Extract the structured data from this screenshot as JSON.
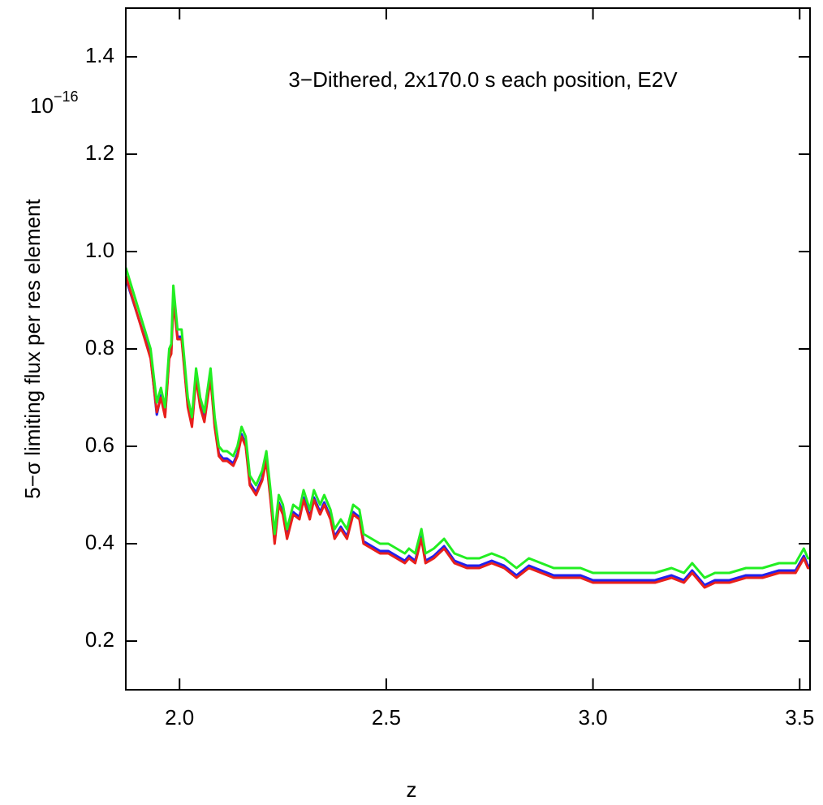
{
  "chart_data": {
    "type": "line",
    "annotation": "3−Dithered, 2x170.0 s each position, E2V",
    "x_label": "z",
    "y_label": "5−σ limiting flux per res element",
    "y_scale_base": "10",
    "y_scale_exponent": "−16",
    "xlim": [
      1.87,
      3.525
    ],
    "ylim": [
      0.1,
      1.5
    ],
    "xticks": [
      {
        "value": 2,
        "label": "2.0"
      },
      2.5,
      {
        "value": 3,
        "label": "3.0"
      },
      3.5
    ],
    "yticks": [
      0.2,
      0.4,
      0.6,
      0.8,
      {
        "value": 1,
        "label": "1.0"
      },
      1.2,
      1.4
    ],
    "grid": false,
    "x": [
      1.87,
      1.93,
      1.945,
      1.955,
      1.965,
      1.975,
      1.98,
      1.985,
      1.995,
      2.005,
      2.02,
      2.03,
      2.04,
      2.05,
      2.06,
      2.075,
      2.085,
      2.095,
      2.105,
      2.115,
      2.13,
      2.14,
      2.15,
      2.16,
      2.17,
      2.185,
      2.2,
      2.21,
      2.22,
      2.23,
      2.24,
      2.25,
      2.26,
      2.275,
      2.29,
      2.3,
      2.315,
      2.325,
      2.34,
      2.35,
      2.365,
      2.375,
      2.39,
      2.405,
      2.42,
      2.435,
      2.445,
      2.465,
      2.485,
      2.505,
      2.525,
      2.545,
      2.555,
      2.57,
      2.585,
      2.595,
      2.615,
      2.64,
      2.665,
      2.695,
      2.725,
      2.755,
      2.785,
      2.815,
      2.845,
      2.875,
      2.905,
      2.935,
      2.97,
      3.0,
      3.03,
      3.07,
      3.11,
      3.15,
      3.19,
      3.22,
      3.24,
      3.27,
      3.295,
      3.33,
      3.37,
      3.41,
      3.45,
      3.49,
      3.51,
      3.52,
      3.525
    ],
    "series": [
      {
        "color": "#2020ee",
        "values": [
          0.945,
          0.785,
          0.665,
          0.705,
          0.665,
          0.785,
          0.795,
          0.905,
          0.825,
          0.825,
          0.685,
          0.645,
          0.745,
          0.685,
          0.655,
          0.745,
          0.645,
          0.585,
          0.575,
          0.575,
          0.565,
          0.585,
          0.625,
          0.605,
          0.525,
          0.505,
          0.535,
          0.575,
          0.495,
          0.405,
          0.485,
          0.465,
          0.415,
          0.465,
          0.455,
          0.495,
          0.455,
          0.495,
          0.465,
          0.485,
          0.455,
          0.415,
          0.435,
          0.415,
          0.465,
          0.455,
          0.405,
          0.395,
          0.385,
          0.385,
          0.375,
          0.365,
          0.375,
          0.365,
          0.415,
          0.365,
          0.375,
          0.395,
          0.365,
          0.355,
          0.355,
          0.365,
          0.355,
          0.335,
          0.355,
          0.345,
          0.335,
          0.335,
          0.335,
          0.325,
          0.325,
          0.325,
          0.325,
          0.325,
          0.335,
          0.325,
          0.345,
          0.315,
          0.325,
          0.325,
          0.335,
          0.335,
          0.345,
          0.345,
          0.375,
          0.355,
          0.355
        ]
      },
      {
        "color": "#e8201c",
        "values": [
          0.95,
          0.78,
          0.67,
          0.7,
          0.66,
          0.78,
          0.79,
          0.9,
          0.82,
          0.82,
          0.68,
          0.64,
          0.74,
          0.68,
          0.65,
          0.74,
          0.64,
          0.58,
          0.57,
          0.57,
          0.56,
          0.58,
          0.62,
          0.6,
          0.52,
          0.5,
          0.53,
          0.57,
          0.49,
          0.4,
          0.48,
          0.46,
          0.41,
          0.46,
          0.45,
          0.49,
          0.45,
          0.49,
          0.46,
          0.48,
          0.45,
          0.41,
          0.43,
          0.41,
          0.46,
          0.45,
          0.4,
          0.39,
          0.38,
          0.38,
          0.37,
          0.36,
          0.37,
          0.36,
          0.41,
          0.36,
          0.37,
          0.39,
          0.36,
          0.35,
          0.35,
          0.36,
          0.35,
          0.33,
          0.35,
          0.34,
          0.33,
          0.33,
          0.33,
          0.32,
          0.32,
          0.32,
          0.32,
          0.32,
          0.33,
          0.32,
          0.34,
          0.31,
          0.32,
          0.32,
          0.33,
          0.33,
          0.34,
          0.34,
          0.37,
          0.35,
          0.35
        ]
      },
      {
        "color": "#22ee22",
        "values": [
          0.967,
          0.8,
          0.69,
          0.72,
          0.68,
          0.8,
          0.81,
          0.93,
          0.84,
          0.84,
          0.7,
          0.66,
          0.76,
          0.7,
          0.67,
          0.76,
          0.66,
          0.6,
          0.59,
          0.59,
          0.58,
          0.6,
          0.64,
          0.62,
          0.54,
          0.52,
          0.55,
          0.59,
          0.51,
          0.42,
          0.5,
          0.48,
          0.43,
          0.48,
          0.47,
          0.51,
          0.47,
          0.51,
          0.48,
          0.5,
          0.47,
          0.43,
          0.45,
          0.43,
          0.48,
          0.47,
          0.42,
          0.41,
          0.4,
          0.4,
          0.39,
          0.38,
          0.39,
          0.38,
          0.43,
          0.38,
          0.39,
          0.41,
          0.38,
          0.37,
          0.37,
          0.38,
          0.37,
          0.35,
          0.37,
          0.36,
          0.35,
          0.35,
          0.35,
          0.34,
          0.34,
          0.34,
          0.34,
          0.34,
          0.35,
          0.34,
          0.36,
          0.33,
          0.34,
          0.34,
          0.35,
          0.35,
          0.36,
          0.36,
          0.39,
          0.37,
          0.37
        ]
      }
    ]
  }
}
